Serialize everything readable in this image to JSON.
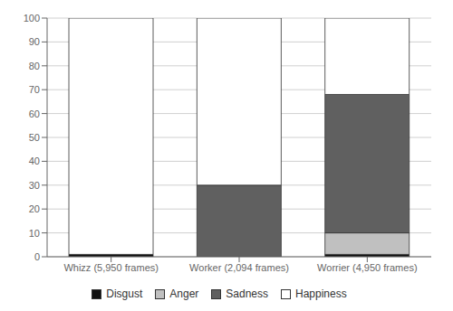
{
  "chart_data": {
    "type": "bar",
    "stacked": true,
    "categories": [
      "Whizz (5,950 frames)",
      "Worker (2,094 frames)",
      "Worrier (4,950 frames)"
    ],
    "series": [
      {
        "name": "Disgust",
        "color": "#111111",
        "values": [
          1,
          0,
          1
        ]
      },
      {
        "name": "Anger",
        "color": "#c0c0c0",
        "values": [
          0,
          0,
          9
        ]
      },
      {
        "name": "Sadness",
        "color": "#606060",
        "values": [
          0,
          30,
          58
        ]
      },
      {
        "name": "Happiness",
        "color": "#ffffff",
        "values": [
          99,
          70,
          32
        ]
      }
    ],
    "ylim": [
      0,
      100
    ],
    "yticks": [
      0,
      10,
      20,
      30,
      40,
      50,
      60,
      70,
      80,
      90,
      100
    ],
    "grid": true,
    "legend": "bottom"
  }
}
